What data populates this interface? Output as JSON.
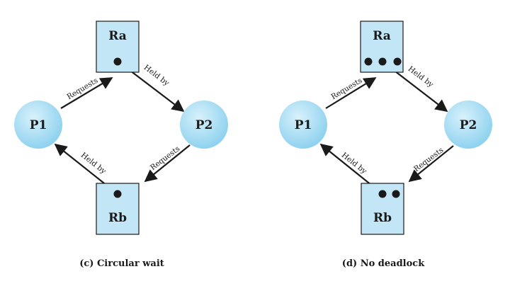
{
  "colors": {
    "resource_fill": "#c3e6f6",
    "resource_stroke": "#1a1a1a",
    "process_fill": "#8fd2ef",
    "process_highlight": "#d8f1fb",
    "line": "#1a1a1a"
  },
  "diagrams": [
    {
      "caption": "(c) Circular wait",
      "nodes": {
        "ra": {
          "label": "Ra",
          "instances": 1
        },
        "rb": {
          "label": "Rb",
          "instances": 1
        },
        "p1": {
          "label": "P1"
        },
        "p2": {
          "label": "P2"
        }
      },
      "edges": [
        {
          "from": "P1",
          "to": "Ra",
          "label": "Requests"
        },
        {
          "from": "Ra",
          "to": "P2",
          "label": "Held by"
        },
        {
          "from": "P2",
          "to": "Rb",
          "label": "Requests"
        },
        {
          "from": "Rb",
          "to": "P1",
          "label": "Held by"
        }
      ]
    },
    {
      "caption": "(d) No deadlock",
      "nodes": {
        "ra": {
          "label": "Ra",
          "instances": 3
        },
        "rb": {
          "label": "Rb",
          "instances": 2
        },
        "p1": {
          "label": "P1"
        },
        "p2": {
          "label": "P2"
        }
      },
      "edges": [
        {
          "from": "P1",
          "to": "Ra",
          "label": "Requests"
        },
        {
          "from": "Ra",
          "to": "P2",
          "label": "Held by"
        },
        {
          "from": "P2",
          "to": "Rb",
          "label": "Requests"
        },
        {
          "from": "Rb",
          "to": "P1",
          "label": "Held by"
        }
      ]
    }
  ]
}
